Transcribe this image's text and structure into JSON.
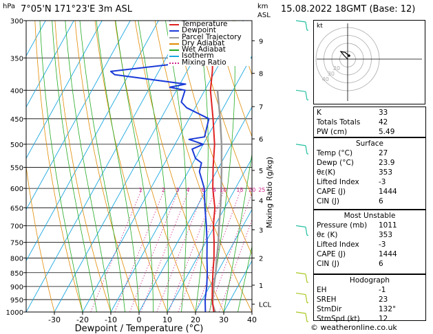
{
  "header": {
    "hpa_label": "hPa",
    "location": "7°05'N 171°23'E 3m ASL",
    "km_label": "km",
    "asl_label": "ASL",
    "datetime": "15.08.2022 18GMT (Base: 12)"
  },
  "legend": [
    {
      "label": "Temperature",
      "color": "#e02020"
    },
    {
      "label": "Dewpoint",
      "color": "#1a3ad8"
    },
    {
      "label": "Parcel Trajectory",
      "color": "#9a9a9a"
    },
    {
      "label": "Dry Adiabat",
      "color": "#e08a00"
    },
    {
      "label": "Wet Adiabat",
      "color": "#22aa22"
    },
    {
      "label": "Isotherm",
      "color": "#19a7e0"
    },
    {
      "label": "Mixing Ratio",
      "color": "#cc2288"
    }
  ],
  "colors": {
    "temperature": "#e02020",
    "dewpoint": "#1a3ad8",
    "parcel": "#9a9a9a",
    "dry_adiabat": "#e08a00",
    "wet_adiabat": "#22aa22",
    "isotherm": "#19a7e0",
    "mixing_ratio": "#cc2288",
    "wind_barb": "#22c0a0",
    "wind_barb_low": "#a8c820"
  },
  "chart_data": {
    "type": "skew-t",
    "xlabel": "Dewpoint / Temperature (°C)",
    "right_axis_label": "Mixing Ratio (g/kg)",
    "x_ticks": [
      -30,
      -20,
      -10,
      0,
      10,
      20,
      30,
      40
    ],
    "pressure_ticks": [
      300,
      350,
      400,
      450,
      500,
      550,
      600,
      650,
      700,
      750,
      800,
      850,
      900,
      950,
      1000
    ],
    "km_ticks": [
      {
        "label": "9",
        "p": 326
      },
      {
        "label": "8",
        "p": 373
      },
      {
        "label": "7",
        "p": 428
      },
      {
        "label": "6",
        "p": 489
      },
      {
        "label": "5",
        "p": 557
      },
      {
        "label": "4",
        "p": 630
      },
      {
        "label": "3",
        "p": 712
      },
      {
        "label": "2",
        "p": 800
      },
      {
        "label": "1",
        "p": 895
      },
      {
        "label": "LCL",
        "p": 968
      }
    ],
    "mixing_ratio_labels": [
      "1",
      "2",
      "3",
      "4",
      "6",
      "8",
      "10",
      "15",
      "20",
      "25"
    ],
    "temperature": [
      {
        "p": 1000,
        "t": 26.5
      },
      {
        "p": 950,
        "t": 23.5
      },
      {
        "p": 900,
        "t": 21
      },
      {
        "p": 850,
        "t": 18.5
      },
      {
        "p": 800,
        "t": 16
      },
      {
        "p": 750,
        "t": 13
      },
      {
        "p": 700,
        "t": 9.5
      },
      {
        "p": 650,
        "t": 6.5
      },
      {
        "p": 600,
        "t": 2
      },
      {
        "p": 550,
        "t": -2
      },
      {
        "p": 500,
        "t": -6
      },
      {
        "p": 450,
        "t": -11.5
      },
      {
        "p": 400,
        "t": -18
      },
      {
        "p": 370,
        "t": -21
      },
      {
        "p": 350,
        "t": -23.5
      }
    ],
    "dewpoint": [
      {
        "p": 1000,
        "t": 23.5
      },
      {
        "p": 950,
        "t": 21
      },
      {
        "p": 900,
        "t": 19
      },
      {
        "p": 850,
        "t": 16.5
      },
      {
        "p": 800,
        "t": 13.5
      },
      {
        "p": 750,
        "t": 10.5
      },
      {
        "p": 700,
        "t": 7
      },
      {
        "p": 650,
        "t": 3
      },
      {
        "p": 600,
        "t": -1
      },
      {
        "p": 560,
        "t": -6
      },
      {
        "p": 540,
        "t": -7
      },
      {
        "p": 530,
        "t": -10
      },
      {
        "p": 510,
        "t": -13
      },
      {
        "p": 500,
        "t": -10
      },
      {
        "p": 490,
        "t": -16
      },
      {
        "p": 485,
        "t": -11
      },
      {
        "p": 450,
        "t": -13
      },
      {
        "p": 430,
        "t": -23
      },
      {
        "p": 420,
        "t": -26
      },
      {
        "p": 400,
        "t": -27
      },
      {
        "p": 395,
        "t": -33
      },
      {
        "p": 390,
        "t": -28
      },
      {
        "p": 375,
        "t": -55
      },
      {
        "p": 370,
        "t": -57
      },
      {
        "p": 360,
        "t": -38
      },
      {
        "p": 350,
        "t": -37
      },
      {
        "p": 345,
        "t": -39
      },
      {
        "p": 335,
        "t": -34
      },
      {
        "p": 330,
        "t": -36
      },
      {
        "p": 320,
        "t": -42
      },
      {
        "p": 310,
        "t": -44
      },
      {
        "p": 300,
        "t": -46
      }
    ],
    "parcel": [
      {
        "p": 1000,
        "t": 27
      },
      {
        "p": 968,
        "t": 24.5
      },
      {
        "p": 900,
        "t": 21.5
      },
      {
        "p": 850,
        "t": 19.5
      },
      {
        "p": 800,
        "t": 17
      },
      {
        "p": 750,
        "t": 14.5
      },
      {
        "p": 700,
        "t": 11.5
      },
      {
        "p": 650,
        "t": 8.5
      },
      {
        "p": 600,
        "t": 5
      },
      {
        "p": 550,
        "t": 1
      },
      {
        "p": 500,
        "t": -3.5
      },
      {
        "p": 450,
        "t": -9
      },
      {
        "p": 400,
        "t": -15.5
      }
    ],
    "wind_barbs": [
      {
        "p": 300,
        "speed_kt": 15
      },
      {
        "p": 400,
        "speed_kt": 10
      },
      {
        "p": 500,
        "speed_kt": 15
      },
      {
        "p": 700,
        "speed_kt": 15
      },
      {
        "p": 850,
        "speed_kt": 5
      },
      {
        "p": 925,
        "speed_kt": 5
      },
      {
        "p": 1000,
        "speed_kt": 5
      }
    ],
    "hodograph": {
      "label": "kt",
      "ring_labels": [
        "10",
        "20",
        "30",
        "40"
      ]
    }
  },
  "indices": [
    {
      "key": "K",
      "value": "33"
    },
    {
      "key": "Totals Totals",
      "value": "42"
    },
    {
      "key": "PW (cm)",
      "value": "5.49"
    }
  ],
  "surface": {
    "title": "Surface",
    "rows": [
      {
        "key": "Temp (°C)",
        "value": "27"
      },
      {
        "key": "Dewp (°C)",
        "value": "23.9"
      },
      {
        "key": "θε(K)",
        "value": "353"
      },
      {
        "key": "Lifted Index",
        "value": "-3"
      },
      {
        "key": "CAPE (J)",
        "value": "1444"
      },
      {
        "key": "CIN (J)",
        "value": "6"
      }
    ]
  },
  "most_unstable": {
    "title": "Most Unstable",
    "rows": [
      {
        "key": "Pressure (mb)",
        "value": "1011"
      },
      {
        "key": "θε (K)",
        "value": "353"
      },
      {
        "key": "Lifted Index",
        "value": "-3"
      },
      {
        "key": "CAPE (J)",
        "value": "1444"
      },
      {
        "key": "CIN (J)",
        "value": "6"
      }
    ]
  },
  "hodograph_table": {
    "title": "Hodograph",
    "rows": [
      {
        "key": "EH",
        "value": "-1"
      },
      {
        "key": "SREH",
        "value": "23"
      },
      {
        "key": "StmDir",
        "value": "132°"
      },
      {
        "key": "StmSpd (kt)",
        "value": "12"
      }
    ]
  },
  "footer": "© weatheronline.co.uk"
}
